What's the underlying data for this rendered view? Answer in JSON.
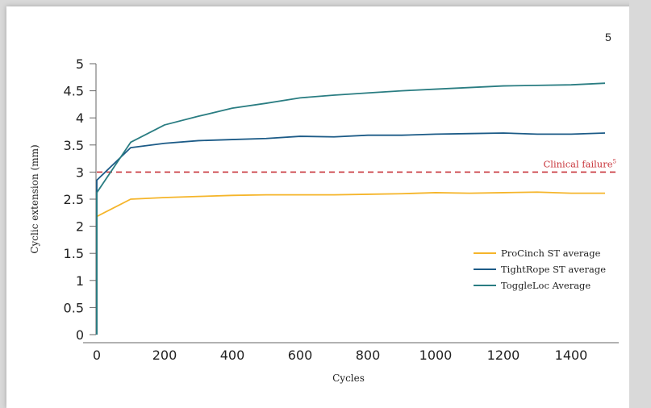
{
  "page_number": "5",
  "colors": {
    "procinch": "#f5b52a",
    "tightrope": "#1c5b87",
    "toggleloc": "#2a7d82",
    "clinical_failure": "#c8343a",
    "axis": "#666666"
  },
  "chart_data": {
    "type": "line",
    "xlabel": "Cycles",
    "ylabel": "Cyclic extension (mm)",
    "xlim": [
      -20,
      1620
    ],
    "ylim": [
      0,
      5
    ],
    "x_ticks": [
      0,
      200,
      400,
      600,
      800,
      1000,
      1200,
      1400
    ],
    "y_ticks": [
      0,
      0.5,
      1,
      1.5,
      2,
      2.5,
      3,
      3.5,
      4,
      4.5,
      5
    ],
    "y_tick_labels": [
      "0",
      "0.5",
      "1",
      "1.5",
      "2",
      "2.5",
      "3",
      "3.5",
      "4",
      "4.5",
      "5"
    ],
    "x_tick_labels": [
      "0",
      "200",
      "400",
      "600",
      "800",
      "1000",
      "1200",
      "1400"
    ],
    "reference_line": {
      "y": 3,
      "label": "Clinical failure",
      "superscript": "5",
      "style": "dashed"
    },
    "legend_position": "bottom-right",
    "series": [
      {
        "name": "ProCinch ST average",
        "color_key": "procinch",
        "x": [
          0,
          0,
          100,
          200,
          300,
          400,
          500,
          600,
          700,
          800,
          900,
          1000,
          1100,
          1200,
          1300,
          1400,
          1500
        ],
        "y": [
          0,
          2.18,
          2.5,
          2.53,
          2.55,
          2.57,
          2.58,
          2.58,
          2.58,
          2.59,
          2.6,
          2.62,
          2.61,
          2.62,
          2.63,
          2.61,
          2.61
        ]
      },
      {
        "name": "TightRope ST average",
        "color_key": "tightrope",
        "x": [
          0,
          0,
          100,
          200,
          300,
          400,
          500,
          600,
          700,
          800,
          900,
          1000,
          1100,
          1200,
          1300,
          1400,
          1500
        ],
        "y": [
          0,
          2.85,
          3.45,
          3.53,
          3.58,
          3.6,
          3.62,
          3.66,
          3.65,
          3.68,
          3.68,
          3.7,
          3.71,
          3.72,
          3.7,
          3.7,
          3.72
        ]
      },
      {
        "name": "ToggleLoc Average",
        "color_key": "toggleloc",
        "x": [
          0,
          0,
          100,
          200,
          300,
          400,
          500,
          600,
          700,
          800,
          900,
          1000,
          1100,
          1200,
          1300,
          1400,
          1500
        ],
        "y": [
          0,
          2.62,
          3.55,
          3.87,
          4.03,
          4.18,
          4.27,
          4.37,
          4.42,
          4.46,
          4.5,
          4.53,
          4.56,
          4.59,
          4.6,
          4.61,
          4.64
        ]
      }
    ]
  }
}
